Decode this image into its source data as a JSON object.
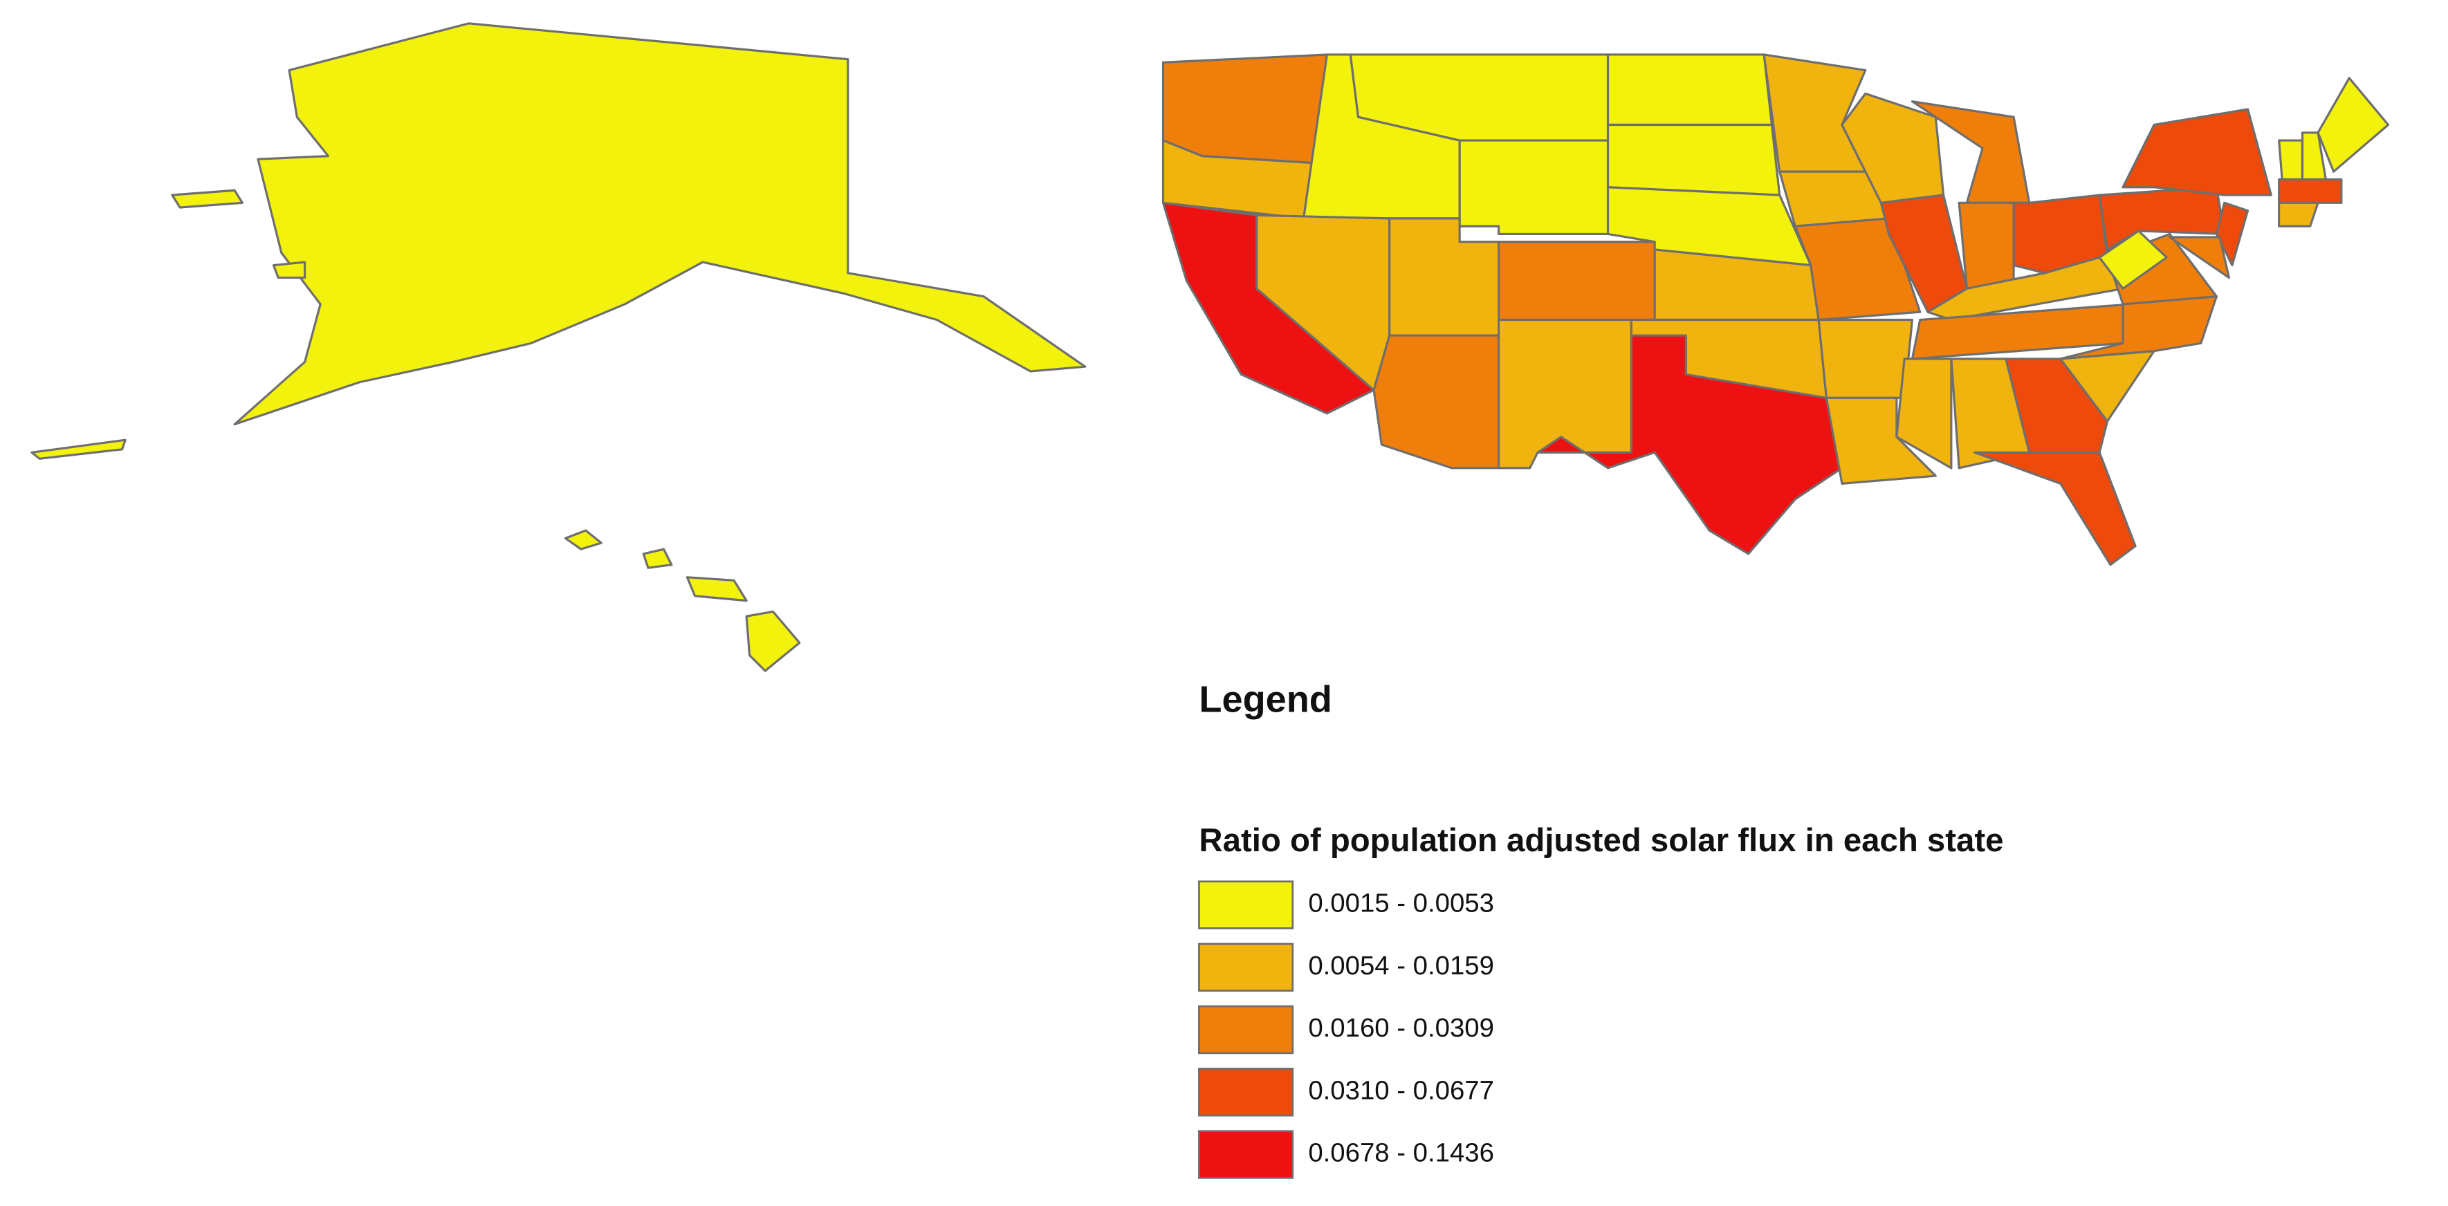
{
  "legend": {
    "heading": "Legend",
    "title": "Ratio of population adjusted solar flux in each state",
    "classes": [
      {
        "label": "0.0015 - 0.0053",
        "color": "#f3f20c"
      },
      {
        "label": "0.0054 - 0.0159",
        "color": "#f1b40f"
      },
      {
        "label": "0.0160 - 0.0309",
        "color": "#ef7f0a"
      },
      {
        "label": "0.0310 - 0.0677",
        "color": "#ee4a0c"
      },
      {
        "label": "0.0678 - 0.1436",
        "color": "#ee1111"
      }
    ]
  }
}
